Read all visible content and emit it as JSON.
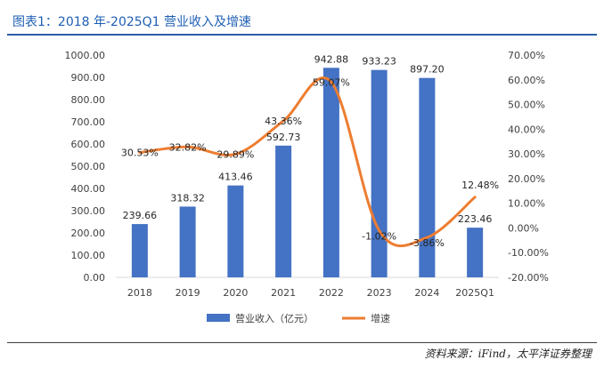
{
  "figure": {
    "title": "图表1：2018 年-2025Q1 营业收入及增速",
    "source": "资料来源：iFind，太平洋证券整理"
  },
  "colors": {
    "bar": "#4472c4",
    "line": "#ed7d31",
    "title": "#1f5fb4"
  },
  "chart_data": {
    "type": "bar",
    "categories": [
      "2018",
      "2019",
      "2020",
      "2021",
      "2022",
      "2023",
      "2024",
      "2025Q1"
    ],
    "series": [
      {
        "name": "营业收入（亿元）",
        "type": "bar",
        "axis": "left",
        "values": [
          239.66,
          318.32,
          413.46,
          592.73,
          942.88,
          933.23,
          897.2,
          223.46
        ],
        "labels": [
          "239.66",
          "318.32",
          "413.46",
          "592.73",
          "942.88",
          "933.23",
          "897.20",
          "223.46"
        ]
      },
      {
        "name": "增速",
        "type": "line",
        "axis": "right",
        "smooth": true,
        "values": [
          30.53,
          32.82,
          29.89,
          43.36,
          59.07,
          -1.02,
          -3.86,
          12.48
        ],
        "labels": [
          "30.53%",
          "32.82%",
          "29.89%",
          "43.36%",
          "59.07%",
          "-1.02%",
          "-3.86%",
          "12.48%"
        ]
      }
    ],
    "ylim": [
      0,
      1000
    ],
    "yticks": [
      "0.00",
      "100.00",
      "200.00",
      "300.00",
      "400.00",
      "500.00",
      "600.00",
      "700.00",
      "800.00",
      "900.00",
      "1000.00"
    ],
    "y2lim": [
      -20,
      70
    ],
    "y2ticks": [
      "-20.00%",
      "-10.00%",
      "0.00%",
      "10.00%",
      "20.00%",
      "30.00%",
      "40.00%",
      "50.00%",
      "60.00%",
      "70.00%"
    ],
    "legend": "bottom",
    "grid": false
  }
}
